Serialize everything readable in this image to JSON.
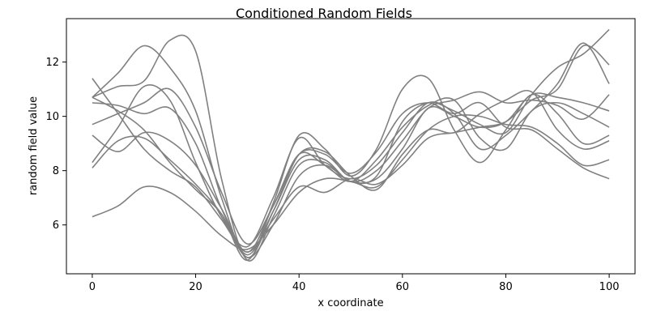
{
  "chart_data": {
    "type": "line",
    "title": "Conditioned Random Fields",
    "xlabel": "x coordinate",
    "ylabel": "random field value",
    "xlim": [
      -5,
      105
    ],
    "ylim": [
      4.2,
      13.6
    ],
    "x_ticks": [
      0,
      20,
      40,
      60,
      80,
      100
    ],
    "y_ticks": [
      6,
      8,
      10,
      12
    ],
    "grid": false,
    "line_color": "#808080",
    "x": [
      0,
      5,
      10,
      15,
      20,
      25,
      30,
      35,
      40,
      45,
      50,
      55,
      60,
      65,
      70,
      75,
      80,
      85,
      90,
      95,
      100
    ],
    "series": [
      {
        "values": [
          6.3,
          6.7,
          7.4,
          7.2,
          6.5,
          5.6,
          5.1,
          6.0,
          7.2,
          7.7,
          7.6,
          7.4,
          8.4,
          9.5,
          10.0,
          10.0,
          9.7,
          9.6,
          9.0,
          8.2,
          8.4
        ]
      },
      {
        "values": [
          11.4,
          10.1,
          8.8,
          8.0,
          7.4,
          6.2,
          5.0,
          6.2,
          7.4,
          7.2,
          7.7,
          7.5,
          8.2,
          9.2,
          9.4,
          9.6,
          9.8,
          10.6,
          11.0,
          12.6,
          11.9
        ]
      },
      {
        "values": [
          10.7,
          10.2,
          9.5,
          8.3,
          7.3,
          6.4,
          4.7,
          6.8,
          9.3,
          8.8,
          7.8,
          8.8,
          11.0,
          11.4,
          9.5,
          8.3,
          9.5,
          10.8,
          10.1,
          9.0,
          9.3
        ]
      },
      {
        "values": [
          10.7,
          11.6,
          12.6,
          11.8,
          10.2,
          7.0,
          4.8,
          6.5,
          8.6,
          8.7,
          7.8,
          7.3,
          8.6,
          9.5,
          9.4,
          10.1,
          10.6,
          10.9,
          9.5,
          8.8,
          9.1
        ]
      },
      {
        "values": [
          9.3,
          8.7,
          9.4,
          9.1,
          8.2,
          6.6,
          5.0,
          6.7,
          8.6,
          8.2,
          7.6,
          8.4,
          9.6,
          10.4,
          10.6,
          9.2,
          8.8,
          10.2,
          10.5,
          10.1,
          9.6
        ]
      },
      {
        "values": [
          10.5,
          10.4,
          10.1,
          10.3,
          9.0,
          6.6,
          4.9,
          6.5,
          8.4,
          8.4,
          7.6,
          8.0,
          9.1,
          10.3,
          10.6,
          10.9,
          10.5,
          10.6,
          10.4,
          9.9,
          10.8
        ]
      },
      {
        "values": [
          8.1,
          9.1,
          9.2,
          8.4,
          7.5,
          6.4,
          4.8,
          6.0,
          7.8,
          8.2,
          7.6,
          7.7,
          8.8,
          10.3,
          10.0,
          9.6,
          9.8,
          10.8,
          10.7,
          10.5,
          10.2
        ]
      },
      {
        "values": [
          10.7,
          11.1,
          11.3,
          12.8,
          12.4,
          7.7,
          4.7,
          6.3,
          8.2,
          8.3,
          7.6,
          7.8,
          9.8,
          10.5,
          10.2,
          9.7,
          9.4,
          10.8,
          11.8,
          12.3,
          13.2
        ]
      },
      {
        "values": [
          8.3,
          9.6,
          11.1,
          10.6,
          8.3,
          6.3,
          5.2,
          7.0,
          9.2,
          8.2,
          7.7,
          8.2,
          9.4,
          10.5,
          10.1,
          8.8,
          9.3,
          10.2,
          11.2,
          12.7,
          11.2
        ]
      },
      {
        "values": [
          9.7,
          10.1,
          10.5,
          11.0,
          9.6,
          7.2,
          5.3,
          6.7,
          8.6,
          8.6,
          7.9,
          8.7,
          10.1,
          10.5,
          10.1,
          10.5,
          9.6,
          9.5,
          8.8,
          8.1,
          7.7
        ]
      }
    ]
  }
}
